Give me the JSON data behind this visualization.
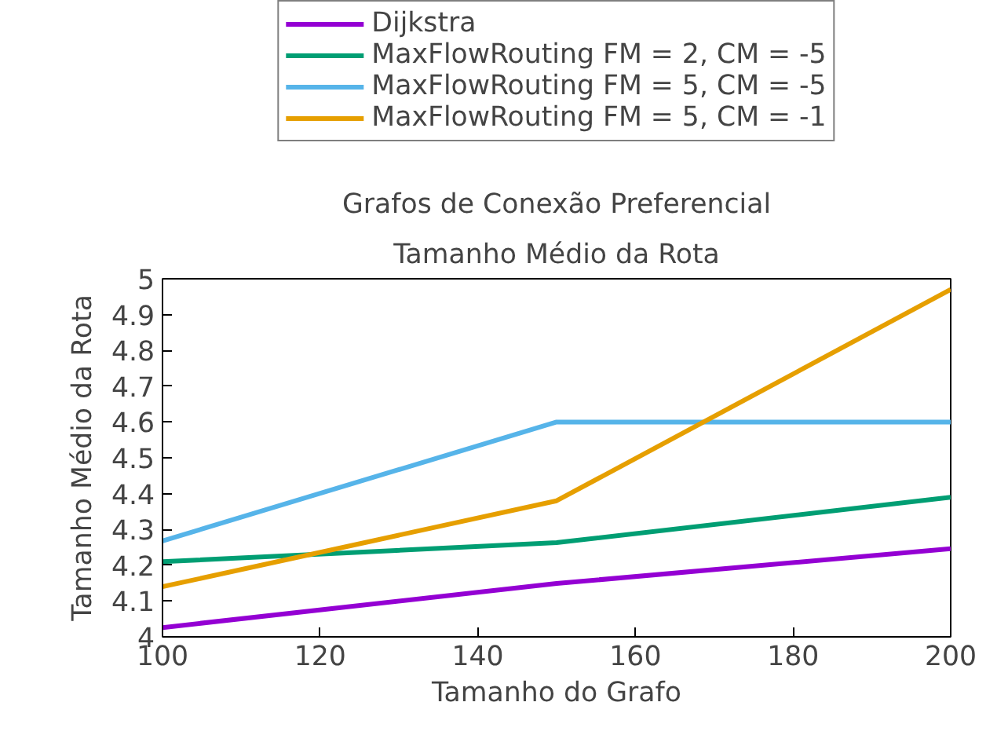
{
  "chart_data": {
    "type": "line",
    "title": "Grafos de Conexão Preferencial",
    "subtitle": "Tamanho Médio da Rota",
    "xlabel": "Tamanho do Grafo",
    "ylabel": "Tamanho Médio da Rota",
    "x": [
      100,
      150,
      200
    ],
    "xlim": [
      100,
      200
    ],
    "xticks": [
      100,
      120,
      140,
      160,
      180,
      200
    ],
    "ylim": [
      4,
      5
    ],
    "yticks": [
      4,
      4.1,
      4.2,
      4.3,
      4.4,
      4.5,
      4.6,
      4.7,
      4.8,
      4.9,
      5
    ],
    "grid": false,
    "legend": "top",
    "marker": "none",
    "line_style": "solid",
    "series": [
      {
        "name": "Dijkstra",
        "color": "#9400d3",
        "values": [
          4.026,
          4.149,
          4.246
        ]
      },
      {
        "name": "MaxFlowRouting FM = 2, CM = -5",
        "color": "#009e73",
        "values": [
          4.21,
          4.263,
          4.39
        ]
      },
      {
        "name": "MaxFlowRouting FM = 5, CM = -5",
        "color": "#56b4e9",
        "values": [
          4.268,
          4.6,
          4.6
        ]
      },
      {
        "name": "MaxFlowRouting FM = 5, CM = -1",
        "color": "#e69f00",
        "values": [
          4.14,
          4.38,
          4.97
        ]
      }
    ]
  }
}
